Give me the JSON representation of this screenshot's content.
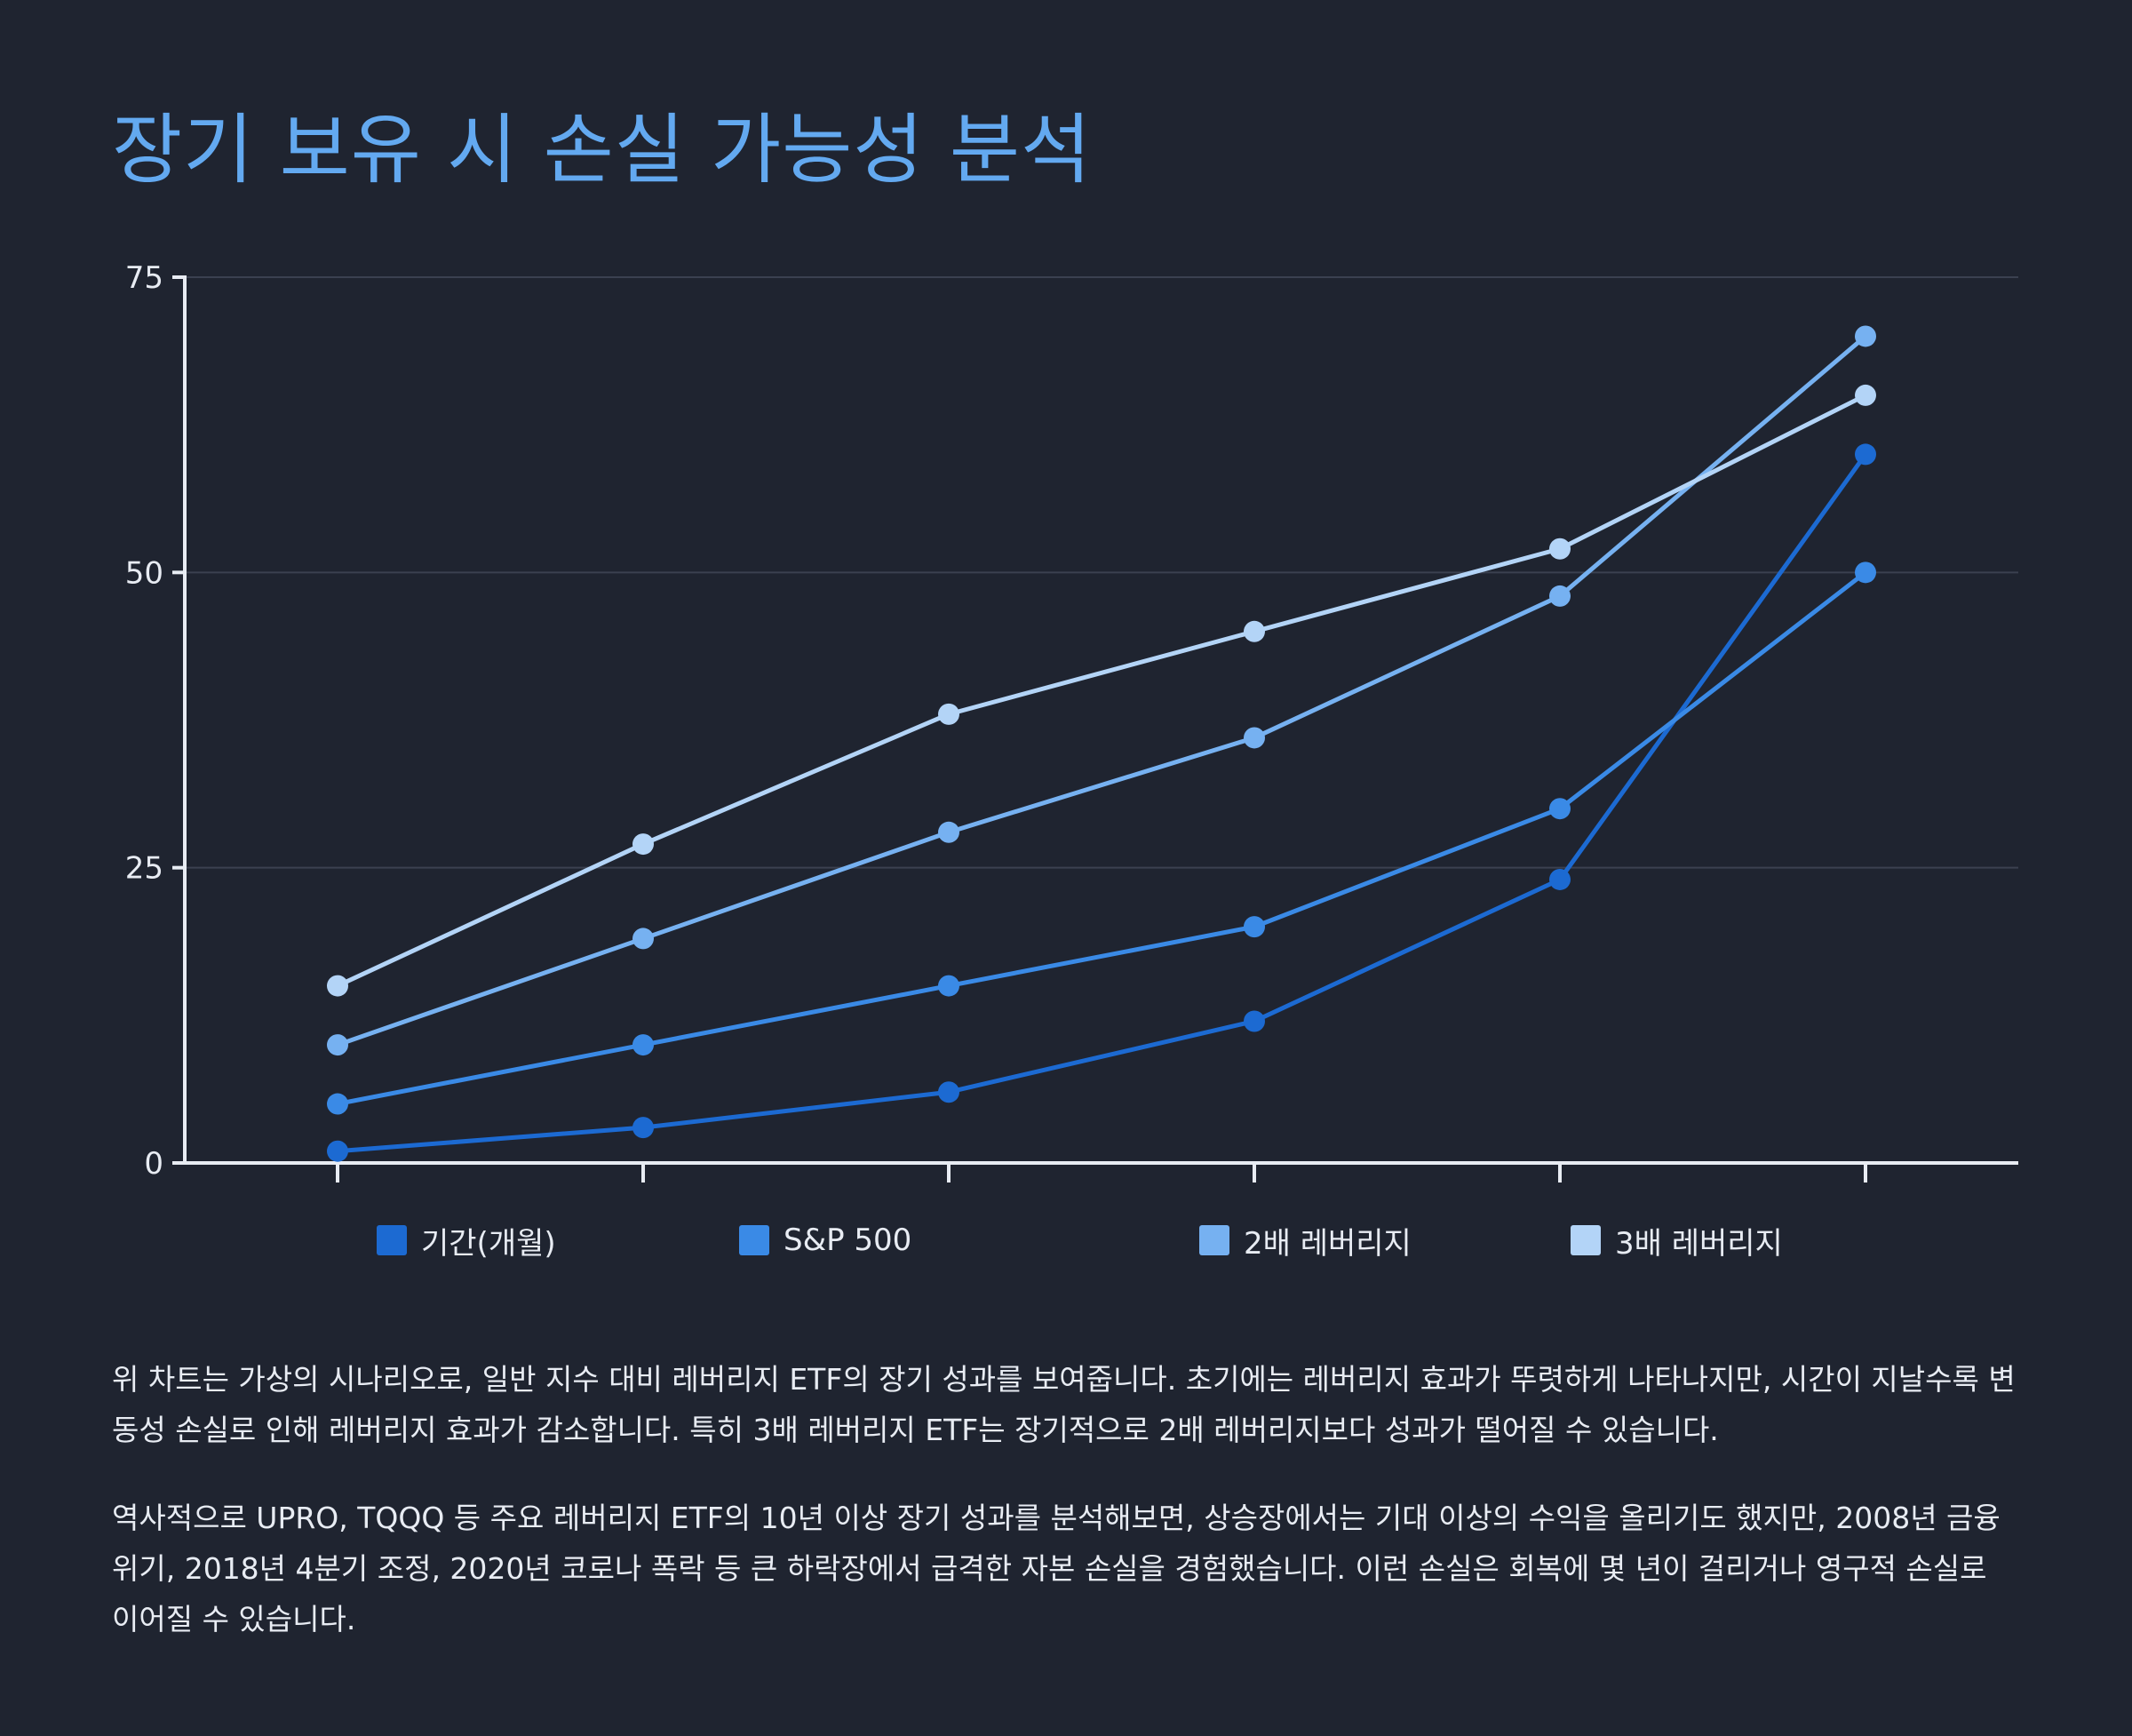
{
  "title": "장기 보유 시 손실 가능성 분석",
  "colors": {
    "background": "#1f2430",
    "title": "#63a9f0",
    "axis": "#e8ecf3",
    "grid": "#3b4150"
  },
  "chart_data": {
    "type": "line",
    "title": "",
    "xlabel": "",
    "ylabel": "",
    "ylim": [
      0,
      75
    ],
    "yticks": [
      0,
      25,
      50,
      75
    ],
    "x": [
      1,
      2,
      3,
      4,
      5,
      6
    ],
    "grid": true,
    "legend_position": "bottom",
    "series": [
      {
        "name": "기간(개월)",
        "color": "#1c6ad2",
        "values": [
          1,
          3,
          6,
          12,
          24,
          60
        ]
      },
      {
        "name": "S&P 500",
        "color": "#3a8ae6",
        "values": [
          5,
          10,
          15,
          20,
          30,
          50
        ]
      },
      {
        "name": "2배 레버리지",
        "color": "#76b1f1",
        "values": [
          10,
          19,
          28,
          36,
          48,
          70
        ]
      },
      {
        "name": "3배 레버리지",
        "color": "#b3d4f7",
        "values": [
          15,
          27,
          38,
          45,
          52,
          65
        ]
      }
    ]
  },
  "description": {
    "paragraph_1": "위 차트는 가상의 시나리오로, 일반 지수 대비 레버리지 ETF의 장기 성과를 보여줍니다. 초기에는 레버리지 효과가 뚜렷하게 나타나지만, 시간이 지날수록 변동성 손실로 인해 레버리지 효과가 감소합니다. 특히 3배 레버리지 ETF는 장기적으로 2배 레버리지보다 성과가 떨어질 수 있습니다.",
    "paragraph_2": "역사적으로 UPRO, TQQQ 등 주요 레버리지 ETF의 10년 이상 장기 성과를 분석해보면, 상승장에서는 기대 이상의 수익을 올리기도 했지만, 2008년 금융위기, 2018년 4분기 조정, 2020년 코로나 폭락 등 큰 하락장에서 급격한 자본 손실을 경험했습니다. 이런 손실은 회복에 몇 년이 걸리거나 영구적 손실로 이어질 수 있습니다."
  }
}
